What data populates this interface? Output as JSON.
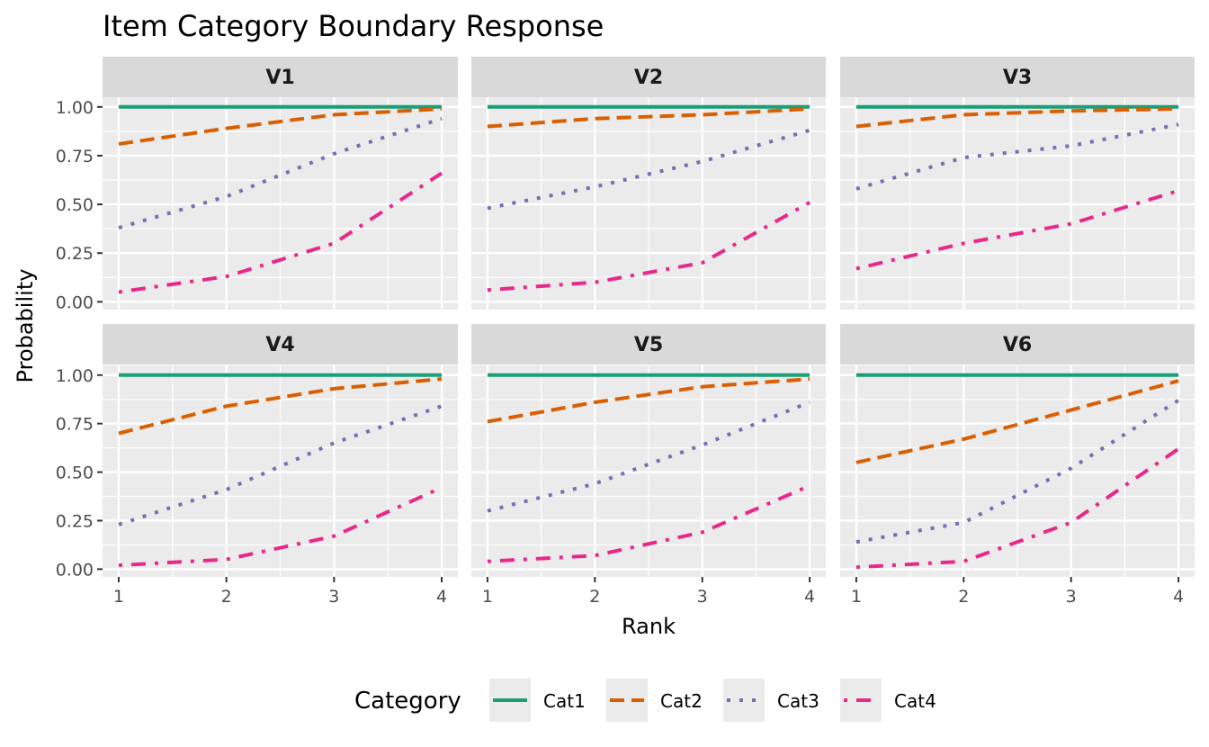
{
  "chart_data": {
    "type": "line",
    "title": "Item Category Boundary Response",
    "xlabel": "Rank",
    "ylabel": "Probability",
    "x": [
      1,
      2,
      3,
      4
    ],
    "xlim": [
      0.85,
      4.15
    ],
    "ylim": [
      -0.04,
      1.05
    ],
    "x_ticks": [
      "1",
      "2",
      "3",
      "4"
    ],
    "y_ticks": [
      "0.00",
      "0.25",
      "0.50",
      "0.75",
      "1.00"
    ],
    "y_tick_values": [
      0,
      0.25,
      0.5,
      0.75,
      1.0
    ],
    "grid": true,
    "facet_layout": "2 rows x 3 cols",
    "legend": {
      "title": "Category",
      "position": "bottom",
      "entries": [
        {
          "name": "Cat1",
          "color": "#1B9E77",
          "linetype": "solid"
        },
        {
          "name": "Cat2",
          "color": "#D95F02",
          "linetype": "dashed"
        },
        {
          "name": "Cat3",
          "color": "#7570B3",
          "linetype": "dotted"
        },
        {
          "name": "Cat4",
          "color": "#E7298A",
          "linetype": "dotdash"
        }
      ]
    },
    "panels": [
      {
        "name": "V1",
        "series": [
          {
            "name": "Cat1",
            "values": [
              1.0,
              1.0,
              1.0,
              1.0
            ]
          },
          {
            "name": "Cat2",
            "values": [
              0.81,
              0.89,
              0.96,
              0.99
            ]
          },
          {
            "name": "Cat3",
            "values": [
              0.38,
              0.54,
              0.76,
              0.94
            ]
          },
          {
            "name": "Cat4",
            "values": [
              0.05,
              0.13,
              0.3,
              0.66
            ]
          }
        ]
      },
      {
        "name": "V2",
        "series": [
          {
            "name": "Cat1",
            "values": [
              1.0,
              1.0,
              1.0,
              1.0
            ]
          },
          {
            "name": "Cat2",
            "values": [
              0.9,
              0.94,
              0.96,
              0.99
            ]
          },
          {
            "name": "Cat3",
            "values": [
              0.48,
              0.59,
              0.72,
              0.88
            ]
          },
          {
            "name": "Cat4",
            "values": [
              0.06,
              0.1,
              0.2,
              0.51
            ]
          }
        ]
      },
      {
        "name": "V3",
        "series": [
          {
            "name": "Cat1",
            "values": [
              1.0,
              1.0,
              1.0,
              1.0
            ]
          },
          {
            "name": "Cat2",
            "values": [
              0.9,
              0.96,
              0.98,
              0.99
            ]
          },
          {
            "name": "Cat3",
            "values": [
              0.58,
              0.74,
              0.8,
              0.91
            ]
          },
          {
            "name": "Cat4",
            "values": [
              0.17,
              0.3,
              0.4,
              0.57
            ]
          }
        ]
      },
      {
        "name": "V4",
        "series": [
          {
            "name": "Cat1",
            "values": [
              1.0,
              1.0,
              1.0,
              1.0
            ]
          },
          {
            "name": "Cat2",
            "values": [
              0.7,
              0.84,
              0.93,
              0.98
            ]
          },
          {
            "name": "Cat3",
            "values": [
              0.23,
              0.41,
              0.65,
              0.84
            ]
          },
          {
            "name": "Cat4",
            "values": [
              0.02,
              0.05,
              0.17,
              0.42
            ]
          }
        ]
      },
      {
        "name": "V5",
        "series": [
          {
            "name": "Cat1",
            "values": [
              1.0,
              1.0,
              1.0,
              1.0
            ]
          },
          {
            "name": "Cat2",
            "values": [
              0.76,
              0.86,
              0.94,
              0.98
            ]
          },
          {
            "name": "Cat3",
            "values": [
              0.3,
              0.44,
              0.64,
              0.86
            ]
          },
          {
            "name": "Cat4",
            "values": [
              0.04,
              0.07,
              0.19,
              0.43
            ]
          }
        ]
      },
      {
        "name": "V6",
        "series": [
          {
            "name": "Cat1",
            "values": [
              1.0,
              1.0,
              1.0,
              1.0
            ]
          },
          {
            "name": "Cat2",
            "values": [
              0.55,
              0.67,
              0.82,
              0.97
            ]
          },
          {
            "name": "Cat3",
            "values": [
              0.14,
              0.24,
              0.52,
              0.87
            ]
          },
          {
            "name": "Cat4",
            "values": [
              0.01,
              0.04,
              0.24,
              0.62
            ]
          }
        ]
      }
    ]
  }
}
